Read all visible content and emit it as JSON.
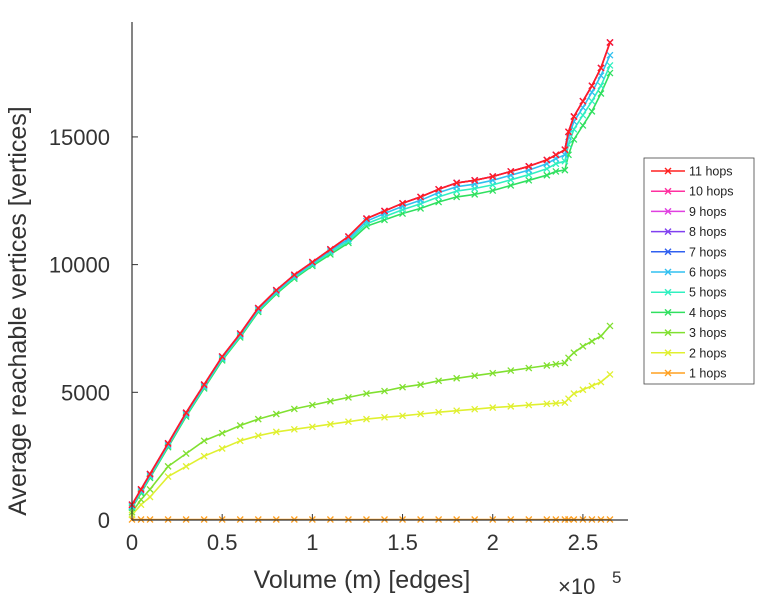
{
  "chart_data": {
    "type": "line",
    "title": "",
    "xlabel": "Volume (m) [edges]",
    "ylabel": "Average reachable vertices [vertices]",
    "x_multiplier": {
      "base": "×10",
      "exponent": "5"
    },
    "xlim": [
      0,
      2.75
    ],
    "ylim": [
      0,
      19500
    ],
    "x_ticks": [
      0,
      0.5,
      1,
      1.5,
      2,
      2.5
    ],
    "x_tick_labels": [
      "0",
      "0.5",
      "1",
      "1.5",
      "2",
      "2.5"
    ],
    "y_ticks": [
      0,
      5000,
      10000,
      15000
    ],
    "y_tick_labels": [
      "0",
      "5000",
      "10000",
      "15000"
    ],
    "grid": false,
    "legend_position": "right",
    "x": [
      0,
      0.05,
      0.1,
      0.2,
      0.3,
      0.4,
      0.5,
      0.6,
      0.7,
      0.8,
      0.9,
      1.0,
      1.1,
      1.2,
      1.3,
      1.4,
      1.5,
      1.6,
      1.7,
      1.8,
      1.9,
      2.0,
      2.1,
      2.2,
      2.3,
      2.35,
      2.4,
      2.42,
      2.45,
      2.5,
      2.55,
      2.6,
      2.65
    ],
    "series": [
      {
        "name": "11 hops",
        "color": "#ff2020",
        "values": [
          600,
          1200,
          1800,
          3000,
          4200,
          5300,
          6400,
          7300,
          8300,
          9000,
          9600,
          10100,
          10600,
          11100,
          11800,
          12100,
          12400,
          12650,
          12950,
          13200,
          13300,
          13450,
          13650,
          13850,
          14100,
          14300,
          14500,
          15200,
          15800,
          16400,
          17000,
          17700,
          18700
        ]
      },
      {
        "name": "10 hops",
        "color": "#ff30a0",
        "values": [
          600,
          1200,
          1800,
          3000,
          4200,
          5300,
          6400,
          7300,
          8300,
          9000,
          9600,
          10100,
          10600,
          11100,
          11800,
          12100,
          12400,
          12650,
          12950,
          13200,
          13300,
          13450,
          13650,
          13850,
          14100,
          14300,
          14500,
          15200,
          15800,
          16400,
          17000,
          17700,
          18700
        ]
      },
      {
        "name": "9 hops",
        "color": "#e040e0",
        "values": [
          600,
          1200,
          1800,
          3000,
          4200,
          5300,
          6400,
          7300,
          8300,
          9000,
          9600,
          10100,
          10600,
          11100,
          11800,
          12100,
          12400,
          12650,
          12950,
          13200,
          13300,
          13450,
          13650,
          13850,
          14100,
          14300,
          14500,
          15200,
          15800,
          16400,
          17000,
          17700,
          18700
        ]
      },
      {
        "name": "8 hops",
        "color": "#8040f0",
        "values": [
          600,
          1200,
          1800,
          3000,
          4200,
          5300,
          6400,
          7300,
          8300,
          9000,
          9600,
          10100,
          10600,
          11100,
          11800,
          12100,
          12400,
          12650,
          12950,
          13200,
          13300,
          13450,
          13650,
          13850,
          14100,
          14300,
          14500,
          15200,
          15800,
          16400,
          17000,
          17700,
          18700
        ]
      },
      {
        "name": "7 hops",
        "color": "#3060f0",
        "values": [
          600,
          1200,
          1800,
          3000,
          4200,
          5300,
          6400,
          7300,
          8300,
          9000,
          9600,
          10100,
          10600,
          11100,
          11800,
          12100,
          12400,
          12650,
          12950,
          13200,
          13300,
          13450,
          13650,
          13850,
          14100,
          14300,
          14500,
          15200,
          15800,
          16400,
          17000,
          17700,
          18700
        ]
      },
      {
        "name": "6 hops",
        "color": "#30c0f0",
        "values": [
          560,
          1150,
          1750,
          2950,
          4150,
          5250,
          6350,
          7250,
          8250,
          8950,
          9550,
          10050,
          10550,
          11000,
          11700,
          12000,
          12280,
          12520,
          12820,
          13050,
          13150,
          13300,
          13500,
          13700,
          13950,
          14150,
          14300,
          15000,
          15600,
          16150,
          16750,
          17400,
          18200
        ]
      },
      {
        "name": "5 hops",
        "color": "#30f0c0",
        "values": [
          520,
          1100,
          1700,
          2900,
          4100,
          5200,
          6300,
          7200,
          8200,
          8900,
          9500,
          10000,
          10480,
          10920,
          11600,
          11880,
          12150,
          12380,
          12650,
          12880,
          12980,
          13120,
          13320,
          13520,
          13750,
          13950,
          14050,
          14700,
          15300,
          15850,
          16400,
          17000,
          17800
        ]
      },
      {
        "name": "4 hops",
        "color": "#30e060",
        "values": [
          480,
          1050,
          1650,
          2850,
          4050,
          5150,
          6250,
          7150,
          8150,
          8850,
          9450,
          9950,
          10400,
          10850,
          11500,
          11750,
          12000,
          12200,
          12450,
          12650,
          12750,
          12900,
          13100,
          13300,
          13500,
          13650,
          13700,
          14300,
          14900,
          15450,
          16000,
          16700,
          17500
        ]
      },
      {
        "name": "3 hops",
        "color": "#80e030",
        "values": [
          300,
          800,
          1200,
          2100,
          2600,
          3100,
          3400,
          3700,
          3950,
          4150,
          4350,
          4500,
          4650,
          4800,
          4950,
          5050,
          5200,
          5300,
          5450,
          5550,
          5650,
          5750,
          5850,
          5950,
          6050,
          6100,
          6150,
          6350,
          6550,
          6800,
          7000,
          7200,
          7600
        ]
      },
      {
        "name": "2 hops",
        "color": "#e0f030",
        "values": [
          200,
          600,
          900,
          1700,
          2100,
          2500,
          2800,
          3100,
          3300,
          3450,
          3550,
          3650,
          3750,
          3850,
          3950,
          4020,
          4080,
          4150,
          4220,
          4280,
          4340,
          4400,
          4450,
          4500,
          4550,
          4570,
          4600,
          4750,
          4950,
          5100,
          5250,
          5400,
          5700
        ]
      },
      {
        "name": "1 hops",
        "color": "#ffa020",
        "values": [
          20,
          20,
          20,
          20,
          20,
          20,
          20,
          20,
          20,
          20,
          20,
          20,
          20,
          20,
          20,
          20,
          20,
          20,
          20,
          20,
          20,
          20,
          20,
          20,
          20,
          20,
          20,
          20,
          20,
          20,
          20,
          20,
          20
        ]
      }
    ]
  }
}
